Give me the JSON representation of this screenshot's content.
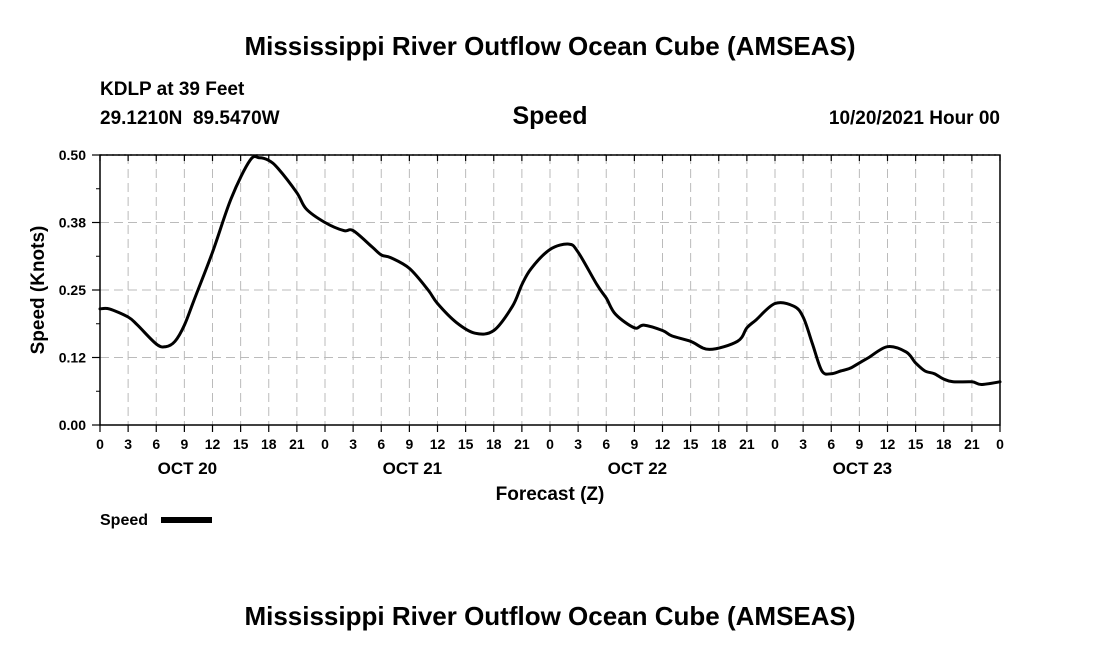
{
  "header": {
    "title": "Mississippi River Outflow Ocean Cube (AMSEAS)",
    "station": "KDLP at 39 Feet",
    "coords": "29.1210N  89.5470W",
    "variable": "Speed",
    "datetime": "10/20/2021 Hour 00"
  },
  "footer": {
    "title": "Mississippi River Outflow Ocean Cube (AMSEAS)"
  },
  "chart_data": {
    "type": "line",
    "title": "Speed",
    "xlabel": "Forecast (Z)",
    "ylabel": "Speed (Knots)",
    "xlim": [
      0,
      96
    ],
    "ylim": [
      0,
      0.5
    ],
    "y_ticks": [
      0,
      0.125,
      0.25,
      0.375,
      0.5
    ],
    "y_tick_labels": [
      "0.00",
      "0.12",
      "0.25",
      "0.38",
      "0.50"
    ],
    "x_ticks": [
      0,
      3,
      6,
      9,
      12,
      15,
      18,
      21,
      24,
      27,
      30,
      33,
      36,
      39,
      42,
      45,
      48,
      51,
      54,
      57,
      60,
      63,
      66,
      69,
      72,
      75,
      78,
      81,
      84,
      87,
      90,
      93,
      96
    ],
    "x_tick_labels": [
      "0",
      "3",
      "6",
      "9",
      "12",
      "15",
      "18",
      "21",
      "0",
      "3",
      "6",
      "9",
      "12",
      "15",
      "18",
      "21",
      "0",
      "3",
      "6",
      "9",
      "12",
      "15",
      "18",
      "21",
      "0",
      "3",
      "6",
      "9",
      "12",
      "15",
      "18",
      "21",
      "0"
    ],
    "day_labels": [
      {
        "hour": 9,
        "label": "OCT 20"
      },
      {
        "hour": 33,
        "label": "OCT 21"
      },
      {
        "hour": 57,
        "label": "OCT 22"
      },
      {
        "hour": 81,
        "label": "OCT 23"
      }
    ],
    "grid": true,
    "legend": [
      {
        "name": "Speed",
        "position": "bottom-left"
      }
    ],
    "series": [
      {
        "name": "Speed",
        "x": [
          0,
          1,
          3,
          4,
          6,
          7,
          8,
          9,
          10,
          12,
          14,
          16,
          17,
          18,
          19,
          21,
          22,
          24,
          26,
          27,
          29,
          30,
          31,
          33,
          35,
          36,
          38,
          40,
          42,
          44,
          45,
          46,
          48,
          50,
          51,
          53,
          54,
          55,
          57,
          58,
          60,
          61,
          63,
          65,
          68,
          69,
          70,
          72,
          74,
          75,
          76,
          77,
          78,
          79,
          80,
          81,
          82,
          84,
          86,
          87,
          88,
          89,
          90,
          91,
          93,
          94,
          96
        ],
        "values": [
          0.215,
          0.215,
          0.2,
          0.185,
          0.15,
          0.145,
          0.155,
          0.185,
          0.23,
          0.32,
          0.42,
          0.49,
          0.495,
          0.49,
          0.475,
          0.43,
          0.4,
          0.375,
          0.36,
          0.36,
          0.33,
          0.315,
          0.31,
          0.29,
          0.25,
          0.225,
          0.19,
          0.17,
          0.175,
          0.22,
          0.26,
          0.29,
          0.325,
          0.335,
          0.32,
          0.26,
          0.235,
          0.205,
          0.18,
          0.185,
          0.175,
          0.165,
          0.155,
          0.14,
          0.155,
          0.18,
          0.195,
          0.225,
          0.22,
          0.2,
          0.15,
          0.1,
          0.095,
          0.1,
          0.105,
          0.115,
          0.125,
          0.145,
          0.135,
          0.115,
          0.1,
          0.095,
          0.085,
          0.08,
          0.08,
          0.075,
          0.08
        ]
      }
    ]
  }
}
